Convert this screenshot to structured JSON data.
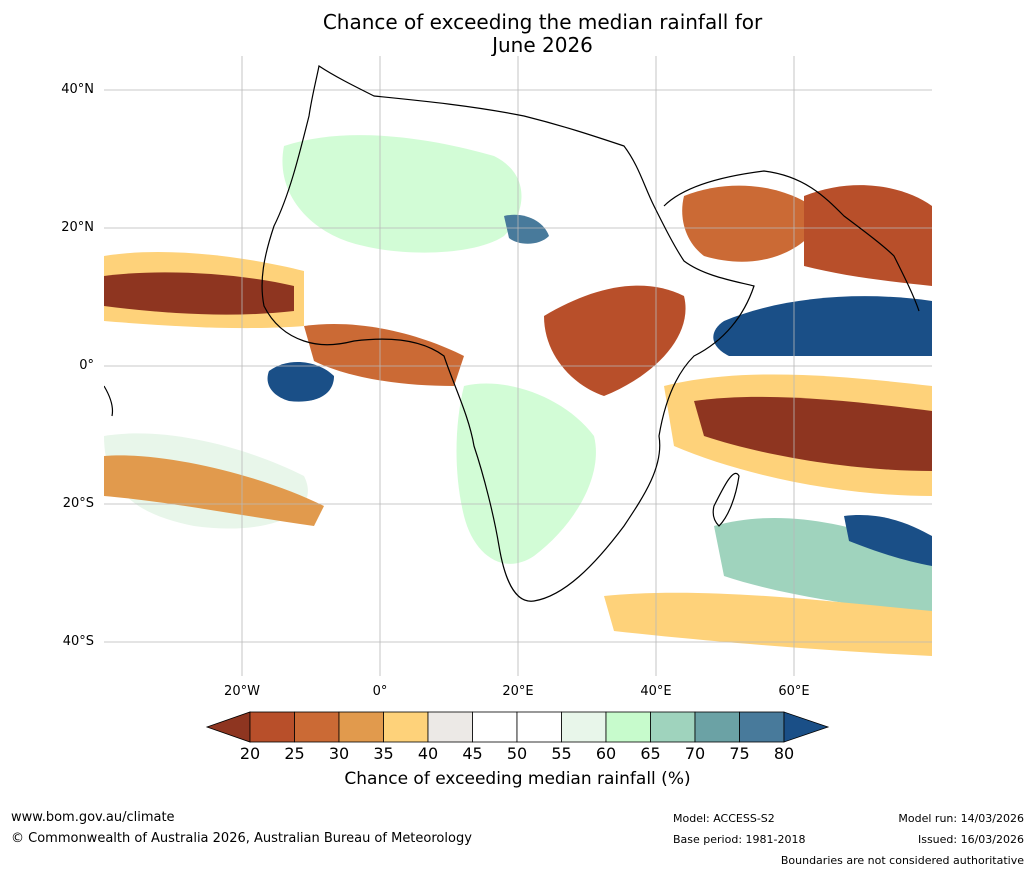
{
  "title_line1": "Chance of exceeding the median rainfall for",
  "title_line2": "June 2026",
  "lat_labels": [
    "40°N",
    "20°N",
    "0°",
    "20°S",
    "40°S"
  ],
  "lon_labels": [
    "20°W",
    "0°",
    "20°E",
    "40°E",
    "60°E"
  ],
  "colorbar": {
    "ticks": [
      "20",
      "25",
      "30",
      "35",
      "40",
      "45",
      "50",
      "55",
      "60",
      "65",
      "70",
      "75",
      "80"
    ],
    "colors": [
      "#8e3520",
      "#b84f2a",
      "#cb6a35",
      "#e19a4d",
      "#fed27a",
      "#ece9e6",
      "#ffffff",
      "#ffffff",
      "#e8f6ea",
      "#c7fbcc",
      "#9fd3bd",
      "#6ba2a5",
      "#487a9b",
      "#1a4f87"
    ],
    "label": "Chance of exceeding median rainfall (%)"
  },
  "footer": {
    "url": "www.bom.gov.au/climate",
    "copyright": "© Commonwealth of Australia 2026, Australian Bureau of Meteorology",
    "model": "Model: ACCESS-S2",
    "base_period": "Base period: 1981-2018",
    "model_run": "Model run: 14/03/2026",
    "issued": "Issued: 16/03/2026",
    "disclaimer": "Boundaries are not considered authoritative"
  }
}
